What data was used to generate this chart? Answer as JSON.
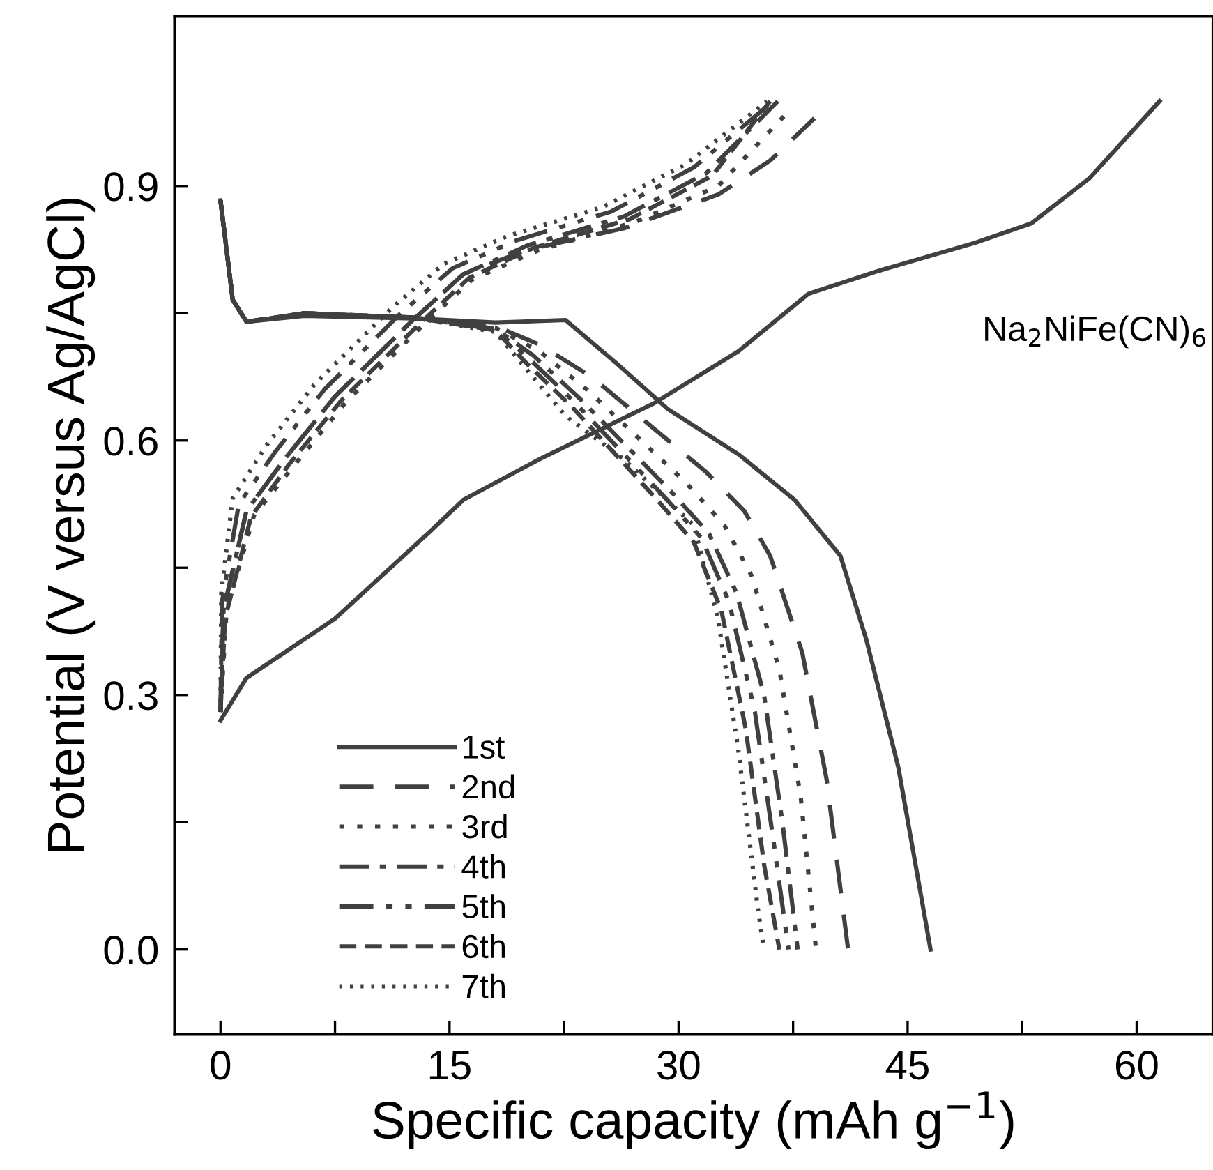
{
  "chart_data": {
    "type": "line",
    "xlabel": "Specific capacity (mAh g$^{−1}$)",
    "ylabel": "Potential (V versus Ag/AgCl)",
    "annotations": [
      "Na$_{2}$NiFe(CN)$_{6}$"
    ],
    "xlim": [
      -3,
      65
    ],
    "ylim": [
      -0.1,
      1.1
    ],
    "xticks": [
      0,
      {
        "value": 7.5,
        "label": null
      },
      15,
      {
        "value": 22.5,
        "label": null
      },
      30,
      {
        "value": 37.5,
        "label": null
      },
      45,
      {
        "value": 52.5,
        "label": null
      },
      60
    ],
    "yticks": [
      {
        "value": 0.0,
        "label": "0.0"
      },
      {
        "value": 0.15,
        "label": null
      },
      0.3,
      {
        "value": 0.45,
        "label": null
      },
      0.6,
      {
        "value": 0.75,
        "label": null
      },
      0.9
    ],
    "grid": false,
    "legend": "bottom left",
    "series": [
      {
        "name": "1st",
        "color": "#404040",
        "line_style": "solid",
        "x": [
          0,
          0.8,
          1.7,
          5.5,
          12.6,
          18,
          22.6,
          26,
          29.3,
          33.9,
          37.6,
          40.6,
          42.3,
          44.4,
          46.5
        ],
        "values": [
          0.883,
          0.766,
          0.74,
          0.747,
          0.744,
          0.739,
          0.742,
          0.69,
          0.637,
          0.584,
          0.53,
          0.464,
          0.365,
          0.214,
          0.0
        ]
      },
      {
        "name": "2nd",
        "color": "#404040",
        "line_style": "dashed",
        "x": [
          0,
          0.8,
          1.7,
          5.5,
          12.6,
          18,
          20.9,
          24.3,
          31.8,
          34.3,
          36,
          38.1,
          39.7,
          41.1
        ],
        "values": [
          0.883,
          0.766,
          0.74,
          0.75,
          0.745,
          0.735,
          0.713,
          0.675,
          0.563,
          0.517,
          0.464,
          0.35,
          0.2,
          0.0
        ]
      },
      {
        "name": "3rd",
        "color": "#404040",
        "line_style": "dotted",
        "x": [
          0,
          0.8,
          1.7,
          5.5,
          12.6,
          18,
          20.9,
          24,
          30.5,
          33,
          34.8,
          36.6,
          38,
          39
        ],
        "values": [
          0.883,
          0.766,
          0.74,
          0.75,
          0.745,
          0.733,
          0.705,
          0.66,
          0.55,
          0.5,
          0.44,
          0.33,
          0.18,
          0.0
        ]
      },
      {
        "name": "4th",
        "color": "#404040",
        "line_style": "dashdot",
        "x": [
          0,
          0.8,
          1.7,
          5.5,
          12.6,
          18,
          20.5,
          23.5,
          29.5,
          32,
          33.8,
          35.6,
          36.8,
          37.8
        ],
        "values": [
          0.883,
          0.766,
          0.74,
          0.75,
          0.745,
          0.732,
          0.7,
          0.65,
          0.54,
          0.49,
          0.42,
          0.3,
          0.15,
          0.0
        ]
      },
      {
        "name": "5th",
        "color": "#404040",
        "line_style": "dashdotdot",
        "x": [
          0,
          0.8,
          1.7,
          5.5,
          12.6,
          18,
          20.3,
          23.2,
          29,
          31.5,
          33.3,
          35,
          36.2,
          37.2
        ],
        "values": [
          0.883,
          0.766,
          0.74,
          0.75,
          0.745,
          0.731,
          0.695,
          0.645,
          0.535,
          0.485,
          0.41,
          0.28,
          0.13,
          0.0
        ]
      },
      {
        "name": "6th",
        "color": "#404040",
        "line_style": "shortdash",
        "x": [
          0,
          0.8,
          1.7,
          5.5,
          12.6,
          18,
          20.1,
          23,
          28.6,
          31,
          32.8,
          34.4,
          35.6,
          36.6
        ],
        "values": [
          0.883,
          0.766,
          0.74,
          0.75,
          0.745,
          0.73,
          0.69,
          0.64,
          0.53,
          0.48,
          0.4,
          0.26,
          0.1,
          0.0
        ]
      },
      {
        "name": "7th",
        "color": "#404040",
        "line_style": "finedot",
        "x": [
          0,
          0.8,
          1.7,
          5.5,
          12.6,
          18,
          22.6,
          26.4,
          31,
          32.6,
          33.9,
          35.2,
          35.6
        ],
        "values": [
          0.883,
          0.766,
          0.74,
          0.75,
          0.745,
          0.728,
          0.629,
          0.578,
          0.5,
          0.388,
          0.237,
          0.047,
          0.0
        ]
      },
      {
        "color": "#404040",
        "line_style": "solid",
        "x": [
          0,
          1.7,
          7.5,
          13.8,
          15.9,
          20.9,
          28.4,
          33.9,
          38.5,
          43.1,
          49.4,
          53.1,
          56.9,
          61.5
        ],
        "values": [
          0.27,
          0.32,
          0.39,
          0.494,
          0.53,
          0.578,
          0.644,
          0.705,
          0.773,
          0.8,
          0.833,
          0.856,
          0.909,
          1.0
        ]
      },
      {
        "color": "#404040",
        "line_style": "dashed",
        "x": [
          0,
          0.2,
          1.7,
          4.2,
          7.5,
          12.6,
          15.9,
          20.1,
          26.4,
          32.6,
          36,
          38.9
        ],
        "values": [
          0.28,
          0.4,
          0.517,
          0.578,
          0.652,
          0.742,
          0.796,
          0.825,
          0.85,
          0.89,
          0.93,
          0.98
        ]
      },
      {
        "color": "#404040",
        "line_style": "dotted",
        "x": [
          0,
          0.4,
          2.2,
          4.8,
          8.2,
          13.2,
          16.5,
          20.8,
          27.2,
          32.6,
          37.3
        ],
        "values": [
          0.28,
          0.4,
          0.512,
          0.57,
          0.645,
          0.735,
          0.79,
          0.824,
          0.858,
          0.9,
          0.99
        ]
      },
      {
        "color": "#404040",
        "line_style": "dashdot",
        "x": [
          0,
          0.2,
          1.7,
          4.2,
          7.5,
          12.6,
          15.9,
          20.1,
          26.4,
          31.8,
          36.5
        ],
        "values": [
          0.28,
          0.4,
          0.517,
          0.578,
          0.652,
          0.742,
          0.796,
          0.83,
          0.864,
          0.915,
          1.0
        ]
      },
      {
        "color": "#404040",
        "line_style": "dashdotdot",
        "x": [
          0,
          0.1,
          1.2,
          3.6,
          6.8,
          11.8,
          15.2,
          19.4,
          25.6,
          31,
          36.2
        ],
        "values": [
          0.28,
          0.41,
          0.525,
          0.587,
          0.66,
          0.75,
          0.803,
          0.836,
          0.87,
          0.922,
          1.0
        ]
      },
      {
        "color": "#404040",
        "line_style": "shortdash",
        "x": [
          0,
          0.3,
          2,
          4.5,
          7.9,
          13,
          16.3,
          20.5,
          26.8,
          32.2,
          36
        ],
        "values": [
          0.28,
          0.39,
          0.51,
          0.572,
          0.647,
          0.737,
          0.792,
          0.827,
          0.861,
          0.912,
          1.0
        ]
      },
      {
        "color": "#404040",
        "line_style": "finedot",
        "x": [
          0,
          0.05,
          0.8,
          3,
          6.2,
          11.2,
          14.6,
          18.8,
          25,
          30.5,
          35.8
        ],
        "values": [
          0.28,
          0.42,
          0.532,
          0.594,
          0.667,
          0.756,
          0.808,
          0.841,
          0.875,
          0.926,
          1.0
        ]
      }
    ]
  }
}
